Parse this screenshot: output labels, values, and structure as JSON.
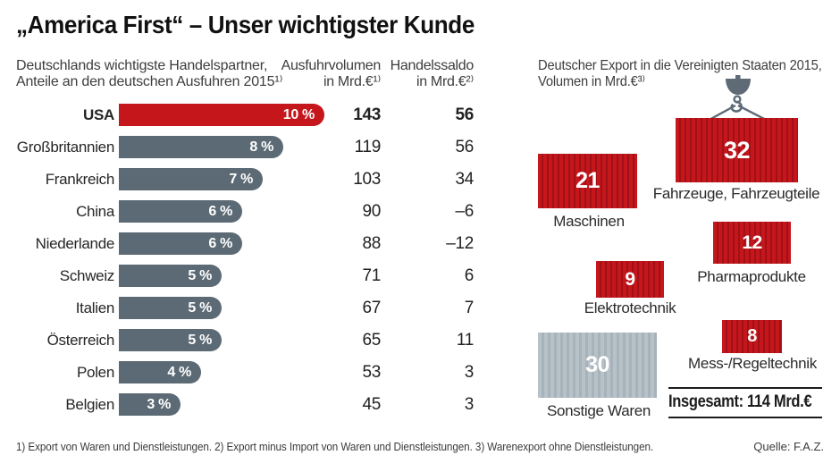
{
  "title": "„America First“ – Unser wichtigster Kunde",
  "left_chart": {
    "subtitle_line1": "Deutschlands wichtigste Handelspartner,",
    "subtitle_line2": "Anteile an den deutschen Ausfuhren 2015¹⁾",
    "col_volume_line1": "Ausfuhrvolumen",
    "col_volume_line2": "in Mrd.€¹⁾",
    "col_saldo_line1": "Handelssaldo",
    "col_saldo_line2": "in Mrd.€²⁾"
  },
  "right_chart": {
    "subtitle_line1": "Deutscher Export in die Vereinigten Staaten 2015,",
    "subtitle_line2": "Volumen in Mrd.€³⁾",
    "total_label": "Insgesamt: 114 Mrd.€"
  },
  "footer": {
    "notes": "1) Export von Waren und Dienstleistungen. 2) Export minus Import von Waren und Dienstleistungen. 3) Warenexport ohne Dienstleistungen.",
    "source": "Quelle: F.A.Z."
  },
  "colors": {
    "highlight_red": "#c5161c",
    "red_stripe_dark": "#a01117",
    "bar_slate": "#5b6a74",
    "gray_container": "#b7c1c8",
    "gray_stripe_dark": "#a7b2ba",
    "crane_gray": "#5e6b76"
  },
  "chart_data": [
    {
      "type": "bar",
      "orientation": "horizontal",
      "title": "Deutschlands wichtigste Handelspartner, Anteile an den deutschen Ausfuhren 2015",
      "categories": [
        "USA",
        "Großbritannien",
        "Frankreich",
        "China",
        "Niederlande",
        "Schweiz",
        "Italien",
        "Österreich",
        "Polen",
        "Belgien"
      ],
      "series": [
        {
          "name": "Anteil an den deutschen Ausfuhren 2015 (%)",
          "values": [
            10,
            8,
            7,
            6,
            6,
            5,
            5,
            5,
            4,
            3
          ]
        },
        {
          "name": "Ausfuhrvolumen in Mrd.€",
          "values": [
            143,
            119,
            103,
            90,
            88,
            71,
            67,
            65,
            53,
            45
          ]
        },
        {
          "name": "Handelssaldo in Mrd.€",
          "values": [
            56,
            56,
            34,
            -6,
            -12,
            6,
            7,
            11,
            3,
            3
          ]
        }
      ],
      "percent_labels": [
        "10 %",
        "8 %",
        "7 %",
        "6 %",
        "6 %",
        "5 %",
        "5 %",
        "5 %",
        "4 %",
        "3 %"
      ],
      "volume_labels": [
        "143",
        "119",
        "103",
        "90",
        "88",
        "71",
        "67",
        "65",
        "53",
        "45"
      ],
      "saldo_labels": [
        "56",
        "56",
        "34",
        "–6",
        "–12",
        "6",
        "7",
        "11",
        "3",
        "3"
      ],
      "highlight_index": 0,
      "xlim": [
        0,
        10
      ],
      "grid": false
    },
    {
      "type": "area-pictogram",
      "title": "Deutscher Export in die Vereinigten Staaten 2015, Volumen in Mrd.€",
      "items": [
        {
          "label": "Fahrzeuge, Fahrzeugteile",
          "value": 32,
          "color": "red"
        },
        {
          "label": "Maschinen",
          "value": 21,
          "color": "red"
        },
        {
          "label": "Pharmaprodukte",
          "value": 12,
          "color": "red"
        },
        {
          "label": "Elektrotechnik",
          "value": 9,
          "color": "red"
        },
        {
          "label": "Mess-/Regeltechnik",
          "value": 8,
          "color": "red"
        },
        {
          "label": "Sonstige Waren",
          "value": 30,
          "color": "gray"
        }
      ],
      "total_value": 114,
      "unit": "Mrd.€"
    }
  ]
}
